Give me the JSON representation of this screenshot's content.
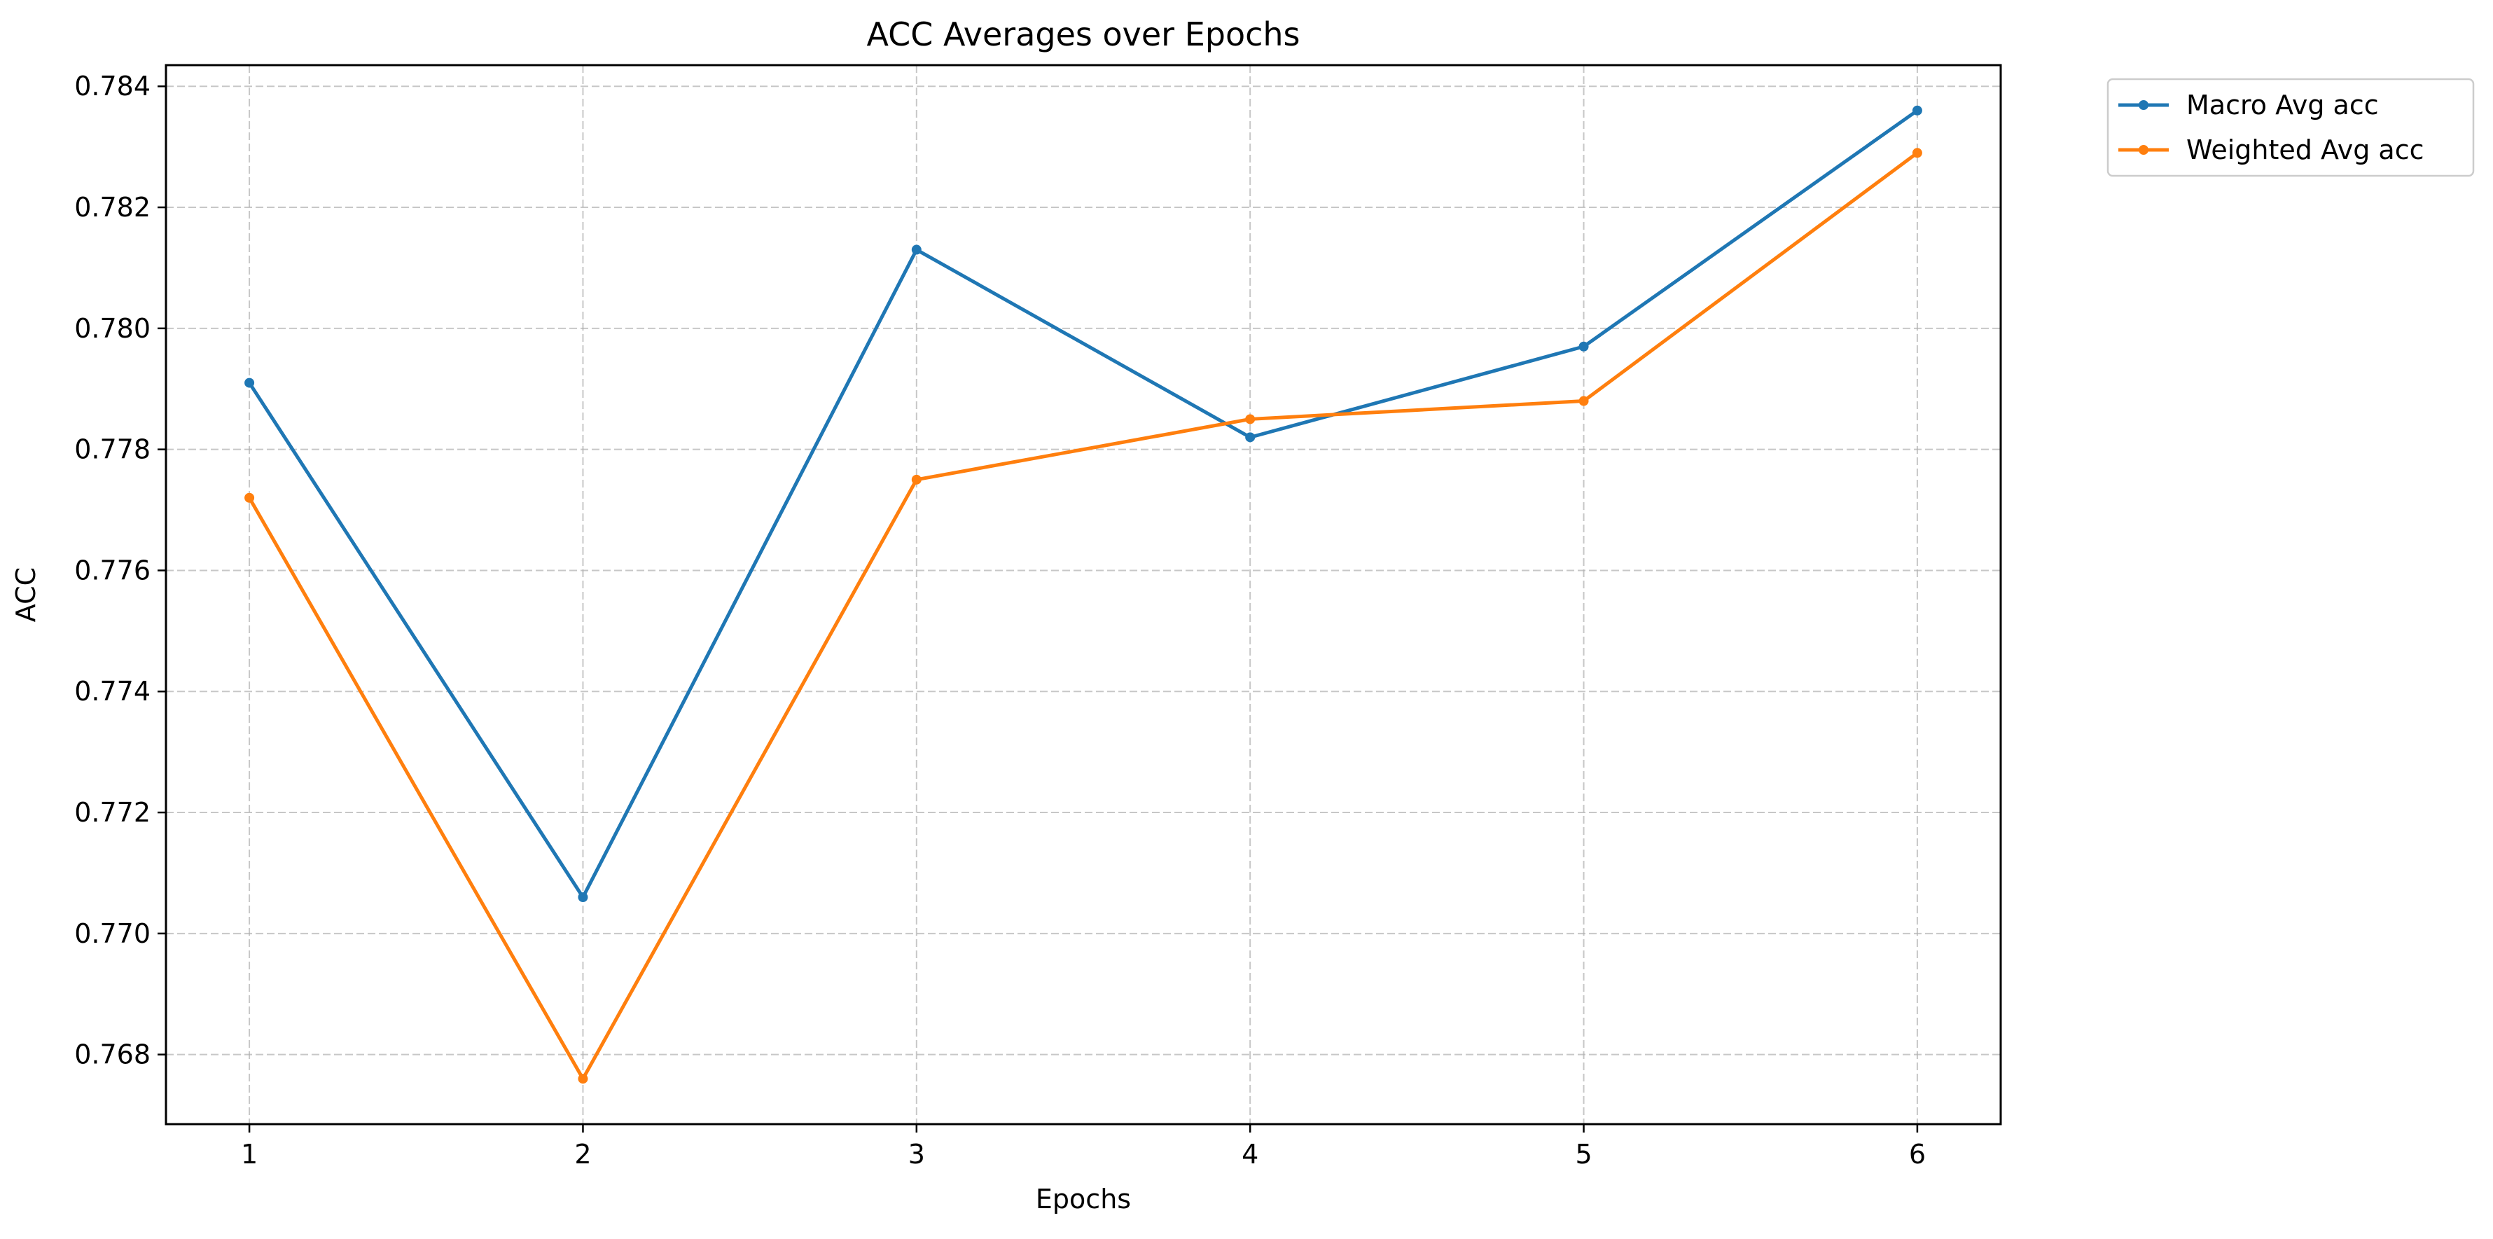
{
  "chart_data": {
    "type": "line",
    "title": "ACC Averages over Epochs",
    "xlabel": "Epochs",
    "ylabel": "ACC",
    "x": [
      1,
      2,
      3,
      4,
      5,
      6
    ],
    "x_tick_labels": [
      "1",
      "2",
      "3",
      "4",
      "5",
      "6"
    ],
    "y_ticks": [
      0.768,
      0.77,
      0.772,
      0.774,
      0.776,
      0.778,
      0.78,
      0.782,
      0.784
    ],
    "y_tick_labels": [
      "0.768",
      "0.770",
      "0.772",
      "0.774",
      "0.776",
      "0.778",
      "0.780",
      "0.782",
      "0.784"
    ],
    "xlim": [
      0.75,
      6.25
    ],
    "ylim": [
      0.76685,
      0.78435
    ],
    "grid": true,
    "grid_style": "dashed",
    "legend_position": "outside-top-right",
    "series": [
      {
        "name": "Macro Avg acc",
        "color": "#1f77b4",
        "values": [
          0.7791,
          0.7706,
          0.7813,
          0.7782,
          0.7797,
          0.7836
        ]
      },
      {
        "name": "Weighted Avg acc",
        "color": "#ff7f0e",
        "values": [
          0.7772,
          0.7676,
          0.7775,
          0.7785,
          0.7788,
          0.7829
        ]
      }
    ]
  }
}
